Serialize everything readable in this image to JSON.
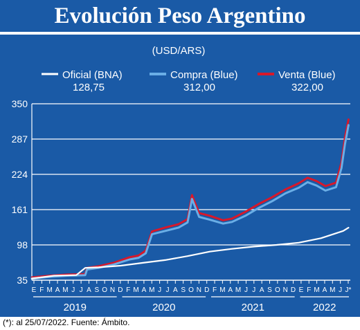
{
  "header": {
    "title": "Evolución Peso Argentino"
  },
  "footnote": "(*): al 25/07/2022. Fuente: Ámbito.",
  "colors": {
    "background": "#1a5aa6",
    "oficial": "#ffffff",
    "compra": "#6aaee6",
    "venta": "#d8182a"
  },
  "chart_data": {
    "type": "line",
    "unit": "(USD/ARS)",
    "ylim": [
      35,
      350
    ],
    "yticks": [
      "350",
      "287",
      "224",
      "161",
      "98",
      "35"
    ],
    "grid": true,
    "legend_placement": "top",
    "series": [
      {
        "name": "Oficial (BNA)",
        "latest": "128,75",
        "x": [
          2019.0,
          2019.25,
          2019.5,
          2019.6,
          2019.75,
          2020.0,
          2020.25,
          2020.5,
          2020.75,
          2021.0,
          2021.25,
          2021.5,
          2021.75,
          2022.0,
          2022.25,
          2022.5,
          2022.56
        ],
        "y": [
          38,
          43,
          44,
          57,
          58,
          61,
          66,
          71,
          78,
          86,
          91,
          95,
          98,
          102,
          110,
          123,
          128.75
        ]
      },
      {
        "name": "Compra (Blue)",
        "latest": "312,00",
        "x": [
          2019.0,
          2019.2,
          2019.4,
          2019.6,
          2019.62,
          2019.75,
          2019.92,
          2020.1,
          2020.2,
          2020.28,
          2020.35,
          2020.5,
          2020.65,
          2020.75,
          2020.8,
          2020.88,
          2021.0,
          2021.15,
          2021.25,
          2021.4,
          2021.55,
          2021.7,
          2021.85,
          2022.0,
          2022.1,
          2022.2,
          2022.3,
          2022.42,
          2022.48,
          2022.52,
          2022.56
        ],
        "y": [
          38,
          41,
          43,
          44,
          54,
          57,
          63,
          72,
          75,
          83,
          117,
          123,
          129,
          138,
          180,
          148,
          143,
          136,
          139,
          150,
          164,
          176,
          190,
          200,
          210,
          204,
          195,
          201,
          235,
          278,
          312
        ]
      },
      {
        "name": "Venta (Blue)",
        "latest": "322,00",
        "x": [
          2019.0,
          2019.2,
          2019.4,
          2019.6,
          2019.62,
          2019.75,
          2019.92,
          2020.1,
          2020.2,
          2020.28,
          2020.35,
          2020.5,
          2020.65,
          2020.75,
          2020.8,
          2020.88,
          2021.0,
          2021.15,
          2021.25,
          2021.4,
          2021.55,
          2021.7,
          2021.85,
          2022.0,
          2022.1,
          2022.2,
          2022.3,
          2022.42,
          2022.48,
          2022.52,
          2022.56
        ],
        "y": [
          40,
          43,
          45,
          46,
          57,
          60,
          66,
          76,
          79,
          88,
          122,
          129,
          135,
          144,
          187,
          155,
          150,
          142,
          145,
          157,
          171,
          183,
          197,
          208,
          218,
          212,
          203,
          209,
          245,
          290,
          322
        ]
      }
    ],
    "month_ticks": [
      "E",
      "F",
      "M",
      "A",
      "M",
      "J",
      "J",
      "A",
      "S",
      "O",
      "N",
      "D",
      "F",
      "M",
      "A",
      "M",
      "J",
      "J",
      "A",
      "S",
      "O",
      "N",
      "D",
      "F",
      "M",
      "A",
      "M",
      "J",
      "J",
      "A",
      "S",
      "O",
      "N",
      "D",
      "E",
      "F",
      "M",
      "A",
      "M",
      "J",
      "J*"
    ],
    "year_labels": [
      "2019",
      "2020",
      "2021",
      "2022"
    ]
  }
}
